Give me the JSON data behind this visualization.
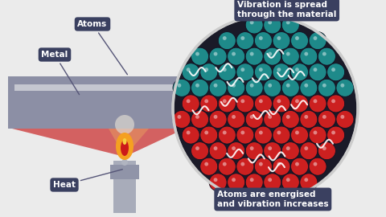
{
  "bg_color": "#ebebeb",
  "bar_color": "#8c8fa5",
  "bar_highlight": "#c5c7d0",
  "teal_color": "#1e8a8a",
  "red_color": "#cc2020",
  "atom_dark": "#1a1a28",
  "circle_outline": "#cccccc",
  "flame_orange": "#f5a020",
  "flame_red": "#cc1a1a",
  "bunsen_color": "#a8acba",
  "heat_cone_color": "#cc3333",
  "heat_glow_color": "#e8a060",
  "label_box_color": "#3a4060",
  "label_text_color": "#ffffff",
  "title": "Vibration is spread\nthrough the material",
  "label_atoms": "Atoms",
  "label_metal": "Metal",
  "label_heat": "Heat",
  "label_bottom": "Atoms are energised\nand vibration increases"
}
